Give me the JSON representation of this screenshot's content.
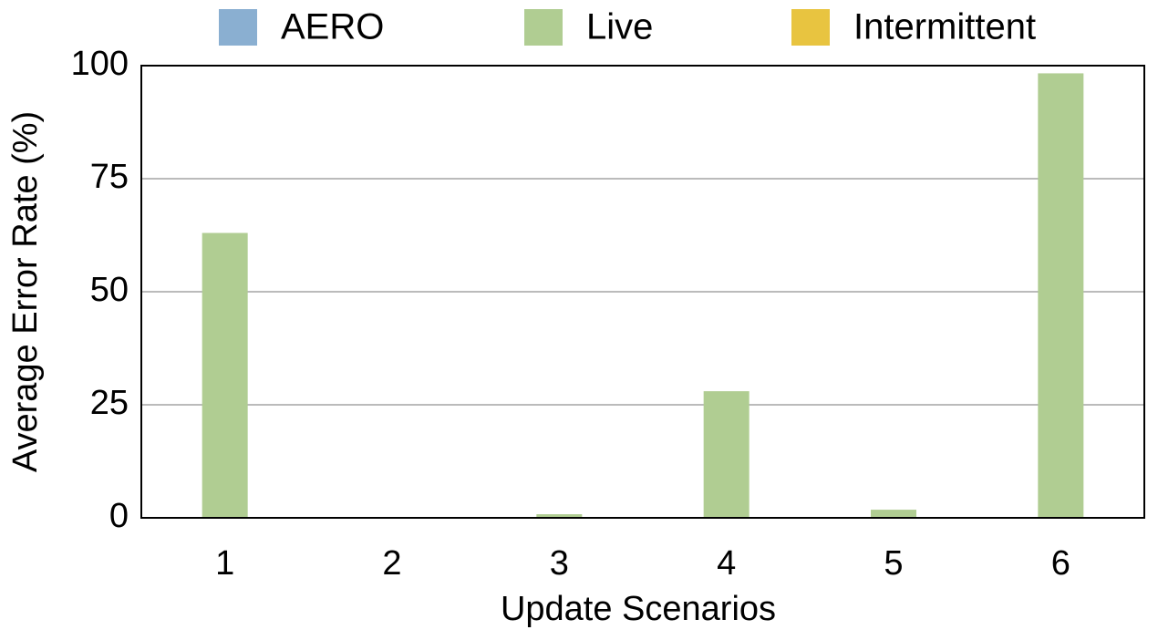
{
  "chart_data": {
    "type": "bar",
    "categories": [
      "1",
      "2",
      "3",
      "4",
      "5",
      "6"
    ],
    "series": [
      {
        "name": "AERO",
        "color": "#8aafd1",
        "values": [
          0,
          0,
          0,
          0,
          0,
          0
        ]
      },
      {
        "name": "Live",
        "color": "#b0cd92",
        "values": [
          63,
          0,
          0.8,
          28,
          1.8,
          98.3
        ]
      },
      {
        "name": "Intermittent",
        "color": "#e8c440",
        "values": [
          0,
          0,
          0,
          0,
          0,
          0
        ]
      }
    ],
    "x_label": "Update Scenarios",
    "y_label": "Average Error Rate (%)",
    "ylim": [
      0,
      100
    ],
    "yticks": [
      0,
      25,
      50,
      75,
      100
    ],
    "grid": true,
    "legend": "top"
  }
}
